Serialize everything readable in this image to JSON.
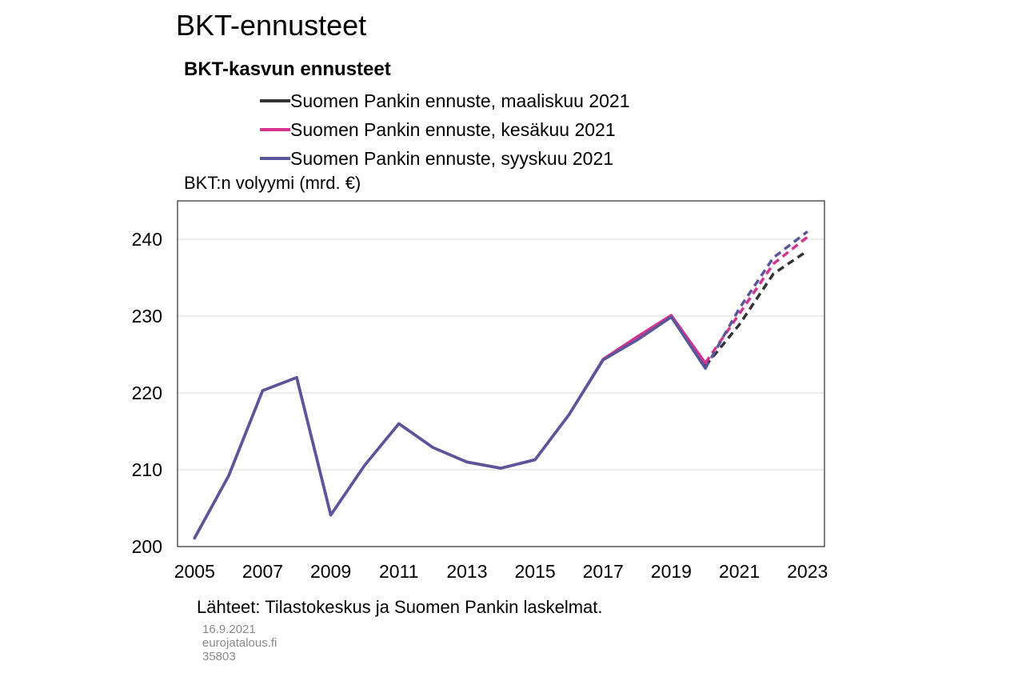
{
  "page": {
    "title": "BKT-ennusteet"
  },
  "chart_data": {
    "type": "line",
    "title": "BKT-kasvun ennusteet",
    "ylabel": "BKT:n volyymi (mrd. €)",
    "xlabel": "",
    "ylim": [
      200,
      245
    ],
    "yticks": [
      200,
      210,
      220,
      230,
      240
    ],
    "xlim": [
      2004.5,
      2023.5
    ],
    "xticks": [
      2005,
      2007,
      2009,
      2011,
      2013,
      2015,
      2017,
      2019,
      2021,
      2023
    ],
    "grid": true,
    "legend_position": "top",
    "forecast_start": 2020,
    "x": [
      2005,
      2006,
      2007,
      2008,
      2009,
      2010,
      2011,
      2012,
      2013,
      2014,
      2015,
      2016,
      2017,
      2018,
      2019,
      2020,
      2021,
      2022,
      2023
    ],
    "series": [
      {
        "name": "Suomen Pankin ennuste, maaliskuu 2021",
        "color": "#333333",
        "values": [
          201.1,
          209.2,
          220.3,
          222.0,
          204.1,
          210.6,
          216.0,
          212.9,
          211.0,
          210.2,
          211.3,
          217.2,
          224.3,
          226.9,
          229.9,
          223.5,
          228.9,
          235.5,
          238.5
        ]
      },
      {
        "name": "Suomen Pankin ennuste, kesäkuu 2021",
        "color": "#d6338f",
        "values": [
          201.1,
          209.2,
          220.3,
          222.0,
          204.1,
          210.6,
          216.0,
          212.9,
          211.0,
          210.2,
          211.3,
          217.2,
          224.4,
          227.3,
          230.1,
          223.9,
          230.3,
          236.8,
          240.3
        ]
      },
      {
        "name": "Suomen Pankin ennuste, syyskuu 2021",
        "color": "#5a569c",
        "values": [
          201.1,
          209.2,
          220.3,
          222.0,
          204.1,
          210.6,
          216.0,
          212.9,
          211.0,
          210.2,
          211.3,
          217.2,
          224.3,
          226.9,
          229.9,
          223.2,
          231.0,
          237.6,
          241.0
        ]
      }
    ]
  },
  "footer": {
    "source": "Lähteet: Tilastokeskus ja Suomen Pankin laskelmat.",
    "date": "16.9.2021",
    "site": "eurojatalous.fi",
    "id": "35803"
  }
}
